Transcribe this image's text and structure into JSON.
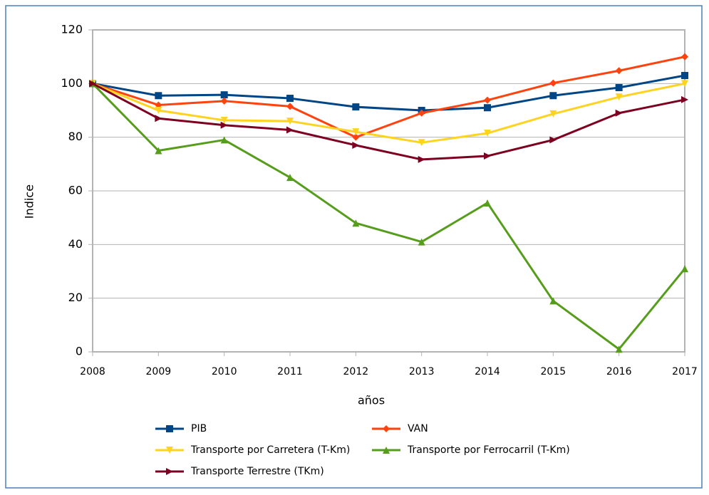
{
  "chart_data": {
    "type": "line",
    "x_label": "años",
    "y_label": "Indice",
    "x": [
      2008,
      2009,
      2010,
      2011,
      2012,
      2013,
      2014,
      2015,
      2016,
      2017
    ],
    "xlim": [
      2008,
      2017
    ],
    "xticks": [
      2008,
      2009,
      2010,
      2011,
      2012,
      2013,
      2014,
      2015,
      2016,
      2017
    ],
    "ylim": [
      0,
      120
    ],
    "yticks": [
      0,
      20,
      40,
      60,
      80,
      100,
      120
    ],
    "grid": true,
    "series": [
      {
        "name": "PIB",
        "color": "#004586",
        "marker": "square",
        "values": [
          100,
          95.5,
          95.8,
          94.5,
          91.3,
          90,
          91,
          95.5,
          98.5,
          103
        ]
      },
      {
        "name": "VAN",
        "color": "#ff420e",
        "marker": "diamond",
        "values": [
          100,
          92,
          93.5,
          91.5,
          80,
          89,
          93.8,
          100.2,
          104.8,
          110
        ]
      },
      {
        "name": "Transporte por Carretera (T-Km)",
        "color": "#ffd320",
        "marker": "triangle-down",
        "values": [
          100,
          90,
          86.3,
          86,
          82,
          78,
          81.5,
          88.7,
          95,
          100
        ]
      },
      {
        "name": "Transporte por Ferrocarril (T-Km)",
        "color": "#579d1c",
        "marker": "triangle-up",
        "values": [
          100,
          75,
          79,
          65,
          48,
          41,
          55.5,
          19,
          1,
          31
        ]
      },
      {
        "name": "Transporte Terrestre (TKm)",
        "color": "#7e0021",
        "marker": "triangle-right",
        "values": [
          100,
          87,
          84.5,
          82.7,
          77,
          71.7,
          73,
          79,
          89,
          94
        ]
      }
    ]
  }
}
